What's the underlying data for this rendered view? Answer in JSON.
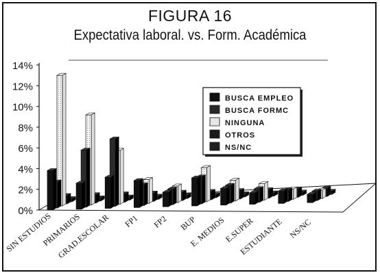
{
  "chart_data": {
    "type": "bar",
    "title": "FIGURA 16",
    "subtitle": "Expectativa laboral. vs. Form. Académica",
    "categories": [
      "SIN ESTUDIOS",
      "PRIMARIOS",
      "GRAD.ESCOLAR",
      "FP1",
      "FP2",
      "BUP",
      "E. MEDIOS",
      "E.SUPER",
      "ESTUDIANTE",
      "NS/NC"
    ],
    "series": [
      {
        "name": "BUSCA EMPLEO",
        "values": [
          3.8,
          2.5,
          3.0,
          2.6,
          1.4,
          2.7,
          1.6,
          1.1,
          1.2,
          0.8
        ]
      },
      {
        "name": "BUSCA FORMC",
        "values": [
          2.5,
          5.5,
          6.5,
          2.0,
          1.5,
          2.6,
          1.7,
          1.3,
          1.1,
          0.9
        ]
      },
      {
        "name": "NINGUNA",
        "values": [
          12.6,
          8.7,
          5.2,
          2.3,
          1.6,
          3.3,
          2.0,
          1.6,
          1.0,
          0.8
        ]
      },
      {
        "name": "OTROS",
        "values": [
          0.8,
          0.8,
          0.8,
          0.8,
          0.8,
          0.8,
          0.8,
          0.8,
          0.8,
          0.8
        ]
      },
      {
        "name": "NS/NC",
        "values": [
          0.3,
          0.3,
          0.3,
          0.3,
          0.3,
          0.3,
          0.3,
          0.3,
          0.3,
          0.3
        ]
      }
    ],
    "yticks": [
      "0%",
      "2%",
      "4%",
      "6%",
      "8%",
      "10%",
      "12%",
      "14%"
    ],
    "ylim": [
      0,
      14
    ],
    "legend_position": "right",
    "colors": {
      "BUSCA EMPLEO": "#111111",
      "BUSCA FORMC": "#2a2a2a",
      "NINGUNA": "#f2f2f2",
      "OTROS": "#1a1a1a",
      "NS/NC": "#202020"
    }
  }
}
